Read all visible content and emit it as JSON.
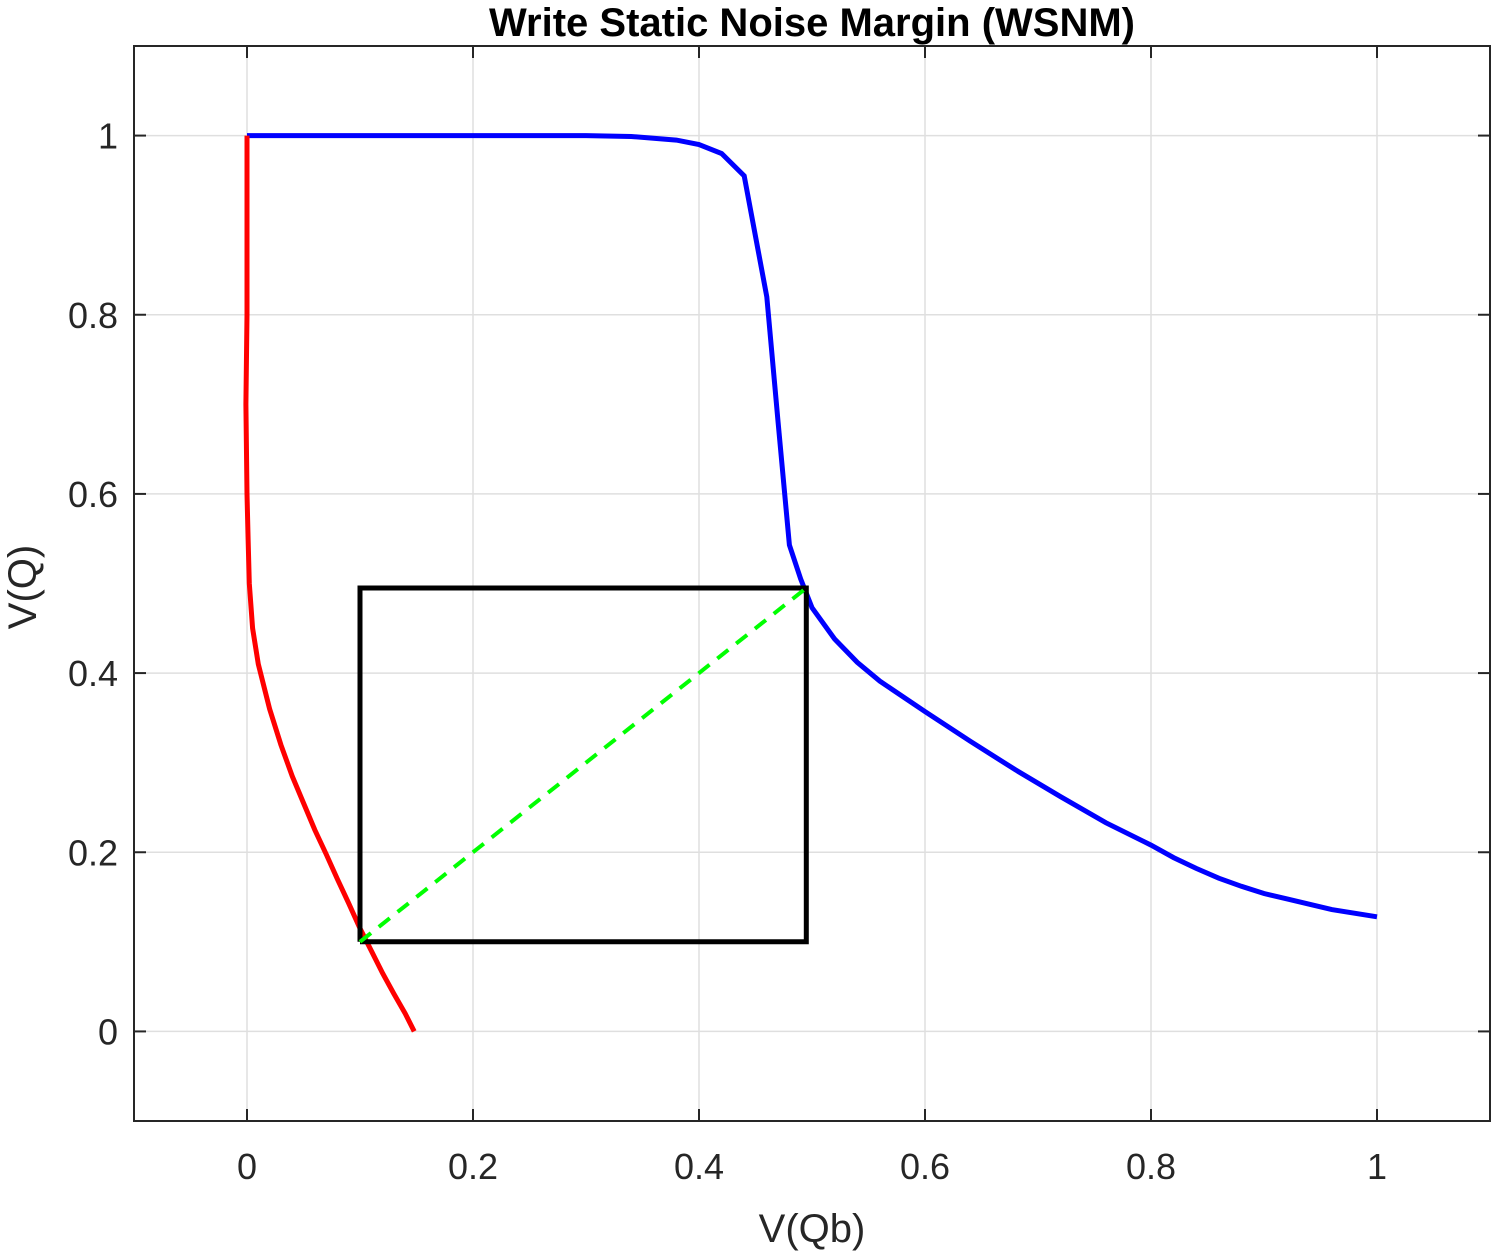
{
  "chart_data": {
    "type": "line",
    "title": "Write Static Noise Margin (WSNM)",
    "xlabel": "V(Qb)",
    "ylabel": "V(Q)",
    "xlim": [
      -0.1,
      1.1
    ],
    "ylim": [
      -0.1,
      1.1
    ],
    "xticks": [
      0,
      0.2,
      0.4,
      0.6,
      0.8,
      1
    ],
    "yticks": [
      0,
      0.2,
      0.4,
      0.6,
      0.8,
      1
    ],
    "xtick_labels": [
      "0",
      "0.2",
      "0.4",
      "0.6",
      "0.8",
      "1"
    ],
    "ytick_labels": [
      "0",
      "0.2",
      "0.4",
      "0.6",
      "0.8",
      "1"
    ],
    "grid": true,
    "series": [
      {
        "color": "#0000ff",
        "points": [
          [
            0,
            1
          ],
          [
            0.1,
            1
          ],
          [
            0.2,
            1
          ],
          [
            0.3,
            1
          ],
          [
            0.34,
            0.999
          ],
          [
            0.38,
            0.995
          ],
          [
            0.4,
            0.99
          ],
          [
            0.42,
            0.98
          ],
          [
            0.44,
            0.955
          ],
          [
            0.46,
            0.82
          ],
          [
            0.47,
            0.68
          ],
          [
            0.48,
            0.543
          ],
          [
            0.49,
            0.505
          ],
          [
            0.5,
            0.473
          ],
          [
            0.52,
            0.438
          ],
          [
            0.54,
            0.412
          ],
          [
            0.56,
            0.391
          ],
          [
            0.6,
            0.357
          ],
          [
            0.64,
            0.324
          ],
          [
            0.68,
            0.292
          ],
          [
            0.72,
            0.262
          ],
          [
            0.76,
            0.233
          ],
          [
            0.8,
            0.208
          ],
          [
            0.82,
            0.194
          ],
          [
            0.84,
            0.182
          ],
          [
            0.86,
            0.171
          ],
          [
            0.88,
            0.162
          ],
          [
            0.9,
            0.154
          ],
          [
            0.92,
            0.148
          ],
          [
            0.94,
            0.142
          ],
          [
            0.96,
            0.136
          ],
          [
            1.0,
            0.128
          ]
        ]
      },
      {
        "color": "#ff0000",
        "points": [
          [
            0,
            1
          ],
          [
            0,
            0.9
          ],
          [
            0,
            0.8
          ],
          [
            -0.001,
            0.7
          ],
          [
            0,
            0.6
          ],
          [
            0.001,
            0.55
          ],
          [
            0.002,
            0.5
          ],
          [
            0.005,
            0.45
          ],
          [
            0.01,
            0.41
          ],
          [
            0.02,
            0.36
          ],
          [
            0.03,
            0.32
          ],
          [
            0.04,
            0.285
          ],
          [
            0.05,
            0.255
          ],
          [
            0.06,
            0.225
          ],
          [
            0.07,
            0.198
          ],
          [
            0.08,
            0.17
          ],
          [
            0.09,
            0.143
          ],
          [
            0.1,
            0.115
          ],
          [
            0.11,
            0.09
          ],
          [
            0.12,
            0.065
          ],
          [
            0.13,
            0.042
          ],
          [
            0.14,
            0.02
          ],
          [
            0.148,
            0
          ]
        ]
      },
      {
        "color": "#000000",
        "points": [
          [
            0.1,
            0.1
          ],
          [
            0.495,
            0.1
          ],
          [
            0.495,
            0.495
          ],
          [
            0.1,
            0.495
          ],
          [
            0.1,
            0.1
          ]
        ]
      },
      {
        "color": "#00ff00",
        "dashed": true,
        "points": [
          [
            0.1,
            0.1
          ],
          [
            0.495,
            0.495
          ]
        ]
      }
    ]
  }
}
